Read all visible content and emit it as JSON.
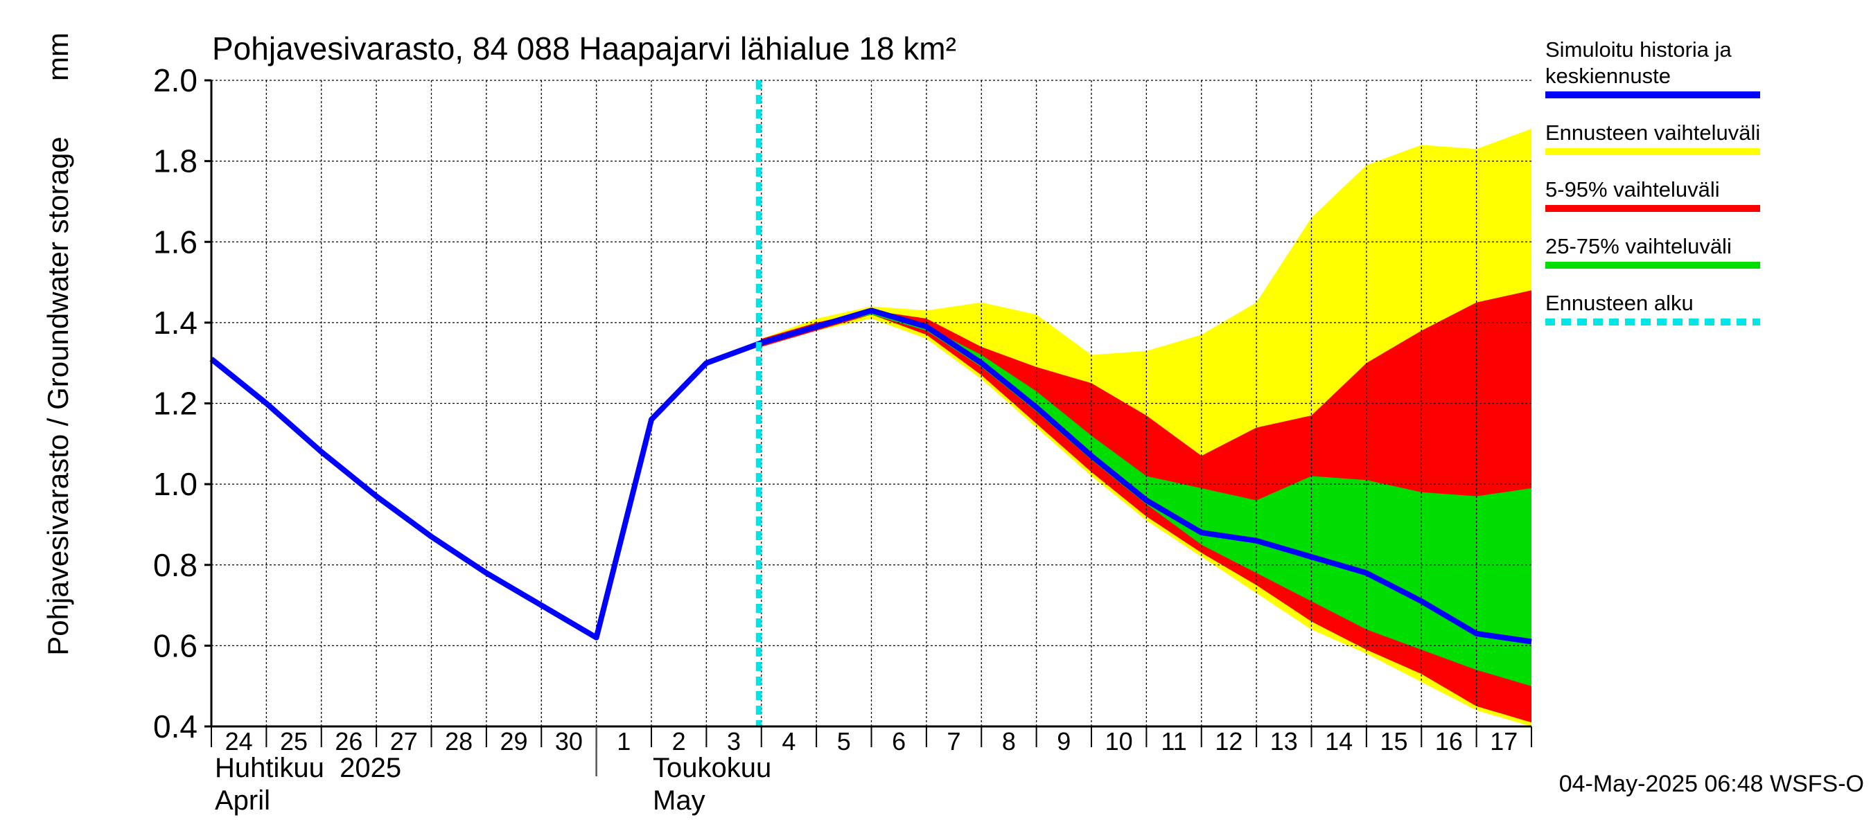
{
  "chart_data": {
    "type": "area",
    "title": "Pohjavesivarasto, 84 088 Haapajarvi lähialue 18 km²",
    "ylabel": "Pohjavesivarasto / Groundwater storage",
    "yunit": "mm",
    "ylim": [
      0.4,
      2.0
    ],
    "yticks": [
      "0.4",
      "0.6",
      "0.8",
      "1.0",
      "1.2",
      "1.4",
      "1.6",
      "1.8",
      "2.0"
    ],
    "xlim": [
      "2025-04-24",
      "2025-05-18"
    ],
    "day_labels": [
      "24",
      "25",
      "26",
      "27",
      "28",
      "29",
      "30",
      "1",
      "2",
      "3",
      "4",
      "5",
      "6",
      "7",
      "8",
      "9",
      "10",
      "11",
      "12",
      "13",
      "14",
      "15",
      "16",
      "17"
    ],
    "month_labels": {
      "april_fi": "Huhtikuu  2025",
      "april_en": "April",
      "may_fi": "Toukokuu",
      "may_en": "May"
    },
    "grid": true,
    "forecast_start": "2025-05-04",
    "footer": "04-May-2025 06:48 WSFS-O",
    "legend": {
      "placement": "right",
      "items": [
        {
          "label_lines": [
            "Simuloitu historia ja",
            "keskiennuste"
          ],
          "color": "#0000ff",
          "style": "solid"
        },
        {
          "label_lines": [
            "Ennusteen vaihteluväli"
          ],
          "color": "#ffff00",
          "style": "solid"
        },
        {
          "label_lines": [
            "5-95% vaihteluväli"
          ],
          "color": "#ff0000",
          "style": "solid"
        },
        {
          "label_lines": [
            "25-75% vaihteluväli"
          ],
          "color": "#00dd00",
          "style": "solid"
        },
        {
          "label_lines": [
            "Ennusteen alku"
          ],
          "color": "#00e5e5",
          "style": "dashed"
        }
      ]
    },
    "colors": {
      "median": "#0000ff",
      "range": "#ffff00",
      "p5_95": "#ff0000",
      "p25_75": "#00dd00",
      "forecast_start": "#00e5e5"
    },
    "series": [
      {
        "name": "Simuloitu historia ja keskiennuste",
        "x": [
          "2025-04-24",
          "2025-04-25",
          "2025-04-26",
          "2025-04-27",
          "2025-04-28",
          "2025-04-29",
          "2025-04-30",
          "2025-05-01",
          "2025-05-02",
          "2025-05-03",
          "2025-05-04",
          "2025-05-05",
          "2025-05-06",
          "2025-05-07",
          "2025-05-08",
          "2025-05-09",
          "2025-05-10",
          "2025-05-11",
          "2025-05-12",
          "2025-05-13",
          "2025-05-14",
          "2025-05-15",
          "2025-05-16",
          "2025-05-17",
          "2025-05-18"
        ],
        "y": [
          1.31,
          1.2,
          1.08,
          0.97,
          0.87,
          0.78,
          0.7,
          0.62,
          1.16,
          1.3,
          1.35,
          1.39,
          1.43,
          1.39,
          1.3,
          1.19,
          1.07,
          0.96,
          0.88,
          0.86,
          0.82,
          0.78,
          0.71,
          0.63,
          0.61
        ]
      }
    ],
    "bands": {
      "x": [
        "2025-05-04",
        "2025-05-05",
        "2025-05-06",
        "2025-05-07",
        "2025-05-08",
        "2025-05-09",
        "2025-05-10",
        "2025-05-11",
        "2025-05-12",
        "2025-05-13",
        "2025-05-14",
        "2025-05-15",
        "2025-05-16",
        "2025-05-17",
        "2025-05-18"
      ],
      "range": {
        "upper": [
          1.36,
          1.41,
          1.44,
          1.43,
          1.45,
          1.42,
          1.32,
          1.33,
          1.37,
          1.45,
          1.66,
          1.79,
          1.84,
          1.83,
          1.88
        ],
        "lower": [
          1.34,
          1.38,
          1.41,
          1.36,
          1.26,
          1.14,
          1.02,
          0.91,
          0.82,
          0.73,
          0.64,
          0.58,
          0.51,
          0.44,
          0.4
        ]
      },
      "p5_95": {
        "upper": [
          1.36,
          1.4,
          1.43,
          1.41,
          1.34,
          1.29,
          1.25,
          1.17,
          1.07,
          1.14,
          1.17,
          1.3,
          1.38,
          1.45,
          1.48
        ],
        "lower": [
          1.34,
          1.38,
          1.42,
          1.37,
          1.27,
          1.15,
          1.03,
          0.92,
          0.83,
          0.75,
          0.66,
          0.59,
          0.53,
          0.45,
          0.41
        ]
      },
      "p25_75": {
        "upper": [
          1.35,
          1.39,
          1.43,
          1.39,
          1.32,
          1.23,
          1.12,
          1.02,
          0.99,
          0.96,
          1.02,
          1.01,
          0.98,
          0.97,
          0.99
        ],
        "lower": [
          1.35,
          1.39,
          1.42,
          1.38,
          1.29,
          1.18,
          1.06,
          0.95,
          0.85,
          0.78,
          0.71,
          0.64,
          0.59,
          0.54,
          0.5
        ]
      }
    }
  }
}
